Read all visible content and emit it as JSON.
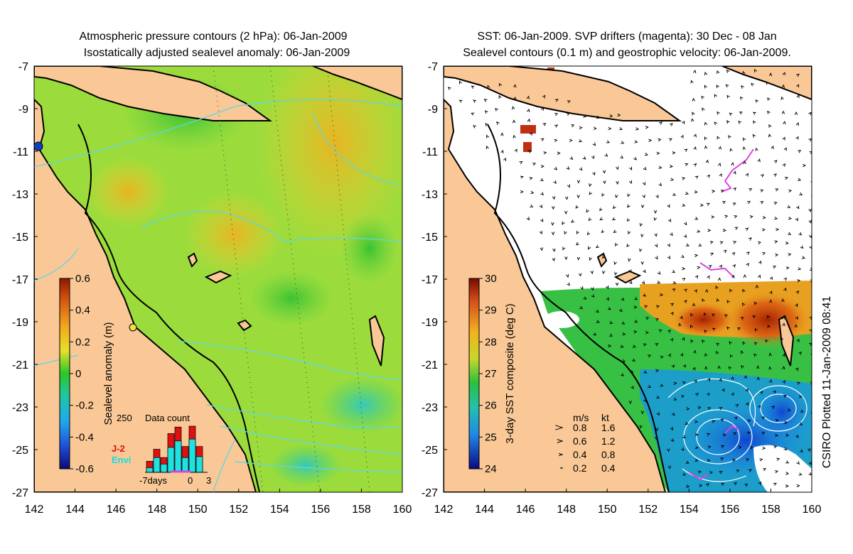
{
  "left_panel": {
    "title_line1": "Atmospheric pressure contours (2 hPa): 06-Jan-2009",
    "title_line2": "Isostatically adjusted sealevel anomaly: 06-Jan-2009",
    "colorbar": {
      "label": "Sealevel anomaly (m)",
      "ticks": [
        "0.6",
        "0.4",
        "0.2",
        "0",
        "-0.2",
        "-0.4",
        "-0.6"
      ]
    },
    "data_count": {
      "title": "Data count",
      "max_label": "250",
      "series1": "J-2",
      "series2": "Envi",
      "xlabel_left": "-7days",
      "xlabel_zero": "0",
      "xlabel_right": "3",
      "j2_counts": [
        60,
        125,
        80,
        210,
        245,
        140,
        250,
        140
      ],
      "envi_counts": [
        25,
        80,
        45,
        135,
        170,
        80,
        180,
        85
      ]
    }
  },
  "right_panel": {
    "title_line1": "SST: 06-Jan-2009. SVP drifters (magenta): 30 Dec - 08 Jan",
    "title_line2": "Sealevel contours (0.1 m) and geostrophic velocity: 06-Jan-2009.",
    "colorbar": {
      "label": "3-day SST composite (deg C)",
      "ticks": [
        "30",
        "29",
        "28",
        "27",
        "26",
        "25",
        "24"
      ]
    },
    "velocity_legend": {
      "header_ms": "m/s",
      "header_kt": "kt",
      "rows": [
        {
          "ms": "0.8",
          "kt": "1.6"
        },
        {
          "ms": "0.6",
          "kt": "1.2"
        },
        {
          "ms": "0.4",
          "kt": "0.8"
        },
        {
          "ms": "0.2",
          "kt": "0.4"
        }
      ]
    }
  },
  "axes": {
    "lat_ticks": [
      "-7",
      "-9",
      "-11",
      "-13",
      "-15",
      "-17",
      "-19",
      "-21",
      "-23",
      "-25",
      "-27"
    ],
    "lon_ticks": [
      "142",
      "144",
      "146",
      "148",
      "150",
      "152",
      "154",
      "156",
      "158",
      "160"
    ]
  },
  "credit": "CSIRO Plotted 11-Jan-2009 08:41",
  "colors": {
    "land": "#f9c896",
    "ocean_green": "#9bdc3c",
    "ocean_yellow": "#eedd2a",
    "contour": "#5fd6e2",
    "drifter": "#e040e0"
  }
}
